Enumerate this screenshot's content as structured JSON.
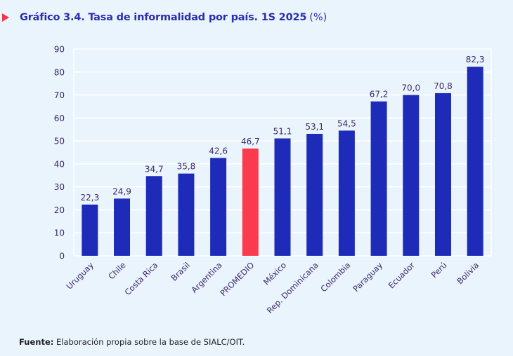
{
  "header": {
    "marker_icon": "triangle-right-icon",
    "title": "Gráfico 3.4. Tasa de informalidad por país. 1S 2025",
    "unit": "(%)"
  },
  "footer": {
    "source_label": "Fuente:",
    "source_text": "Elaboración propia sobre la base de SIALC/OIT."
  },
  "colors": {
    "bar": "#1e2bb8",
    "highlight": "#fb3a4d",
    "label": "#3b2a66",
    "grid": "#ffffff",
    "background": "#eaf4fd"
  },
  "chart_data": {
    "type": "bar",
    "title": "Gráfico 3.4. Tasa de informalidad por país. 1S 2025 (%)",
    "xlabel": "",
    "ylabel": "",
    "ylim": [
      0,
      90
    ],
    "yticks": [
      0,
      10,
      20,
      30,
      40,
      50,
      60,
      70,
      80,
      90
    ],
    "grid": true,
    "legend": "none",
    "categories": [
      "Uruguay",
      "Chile",
      "Costa Rica",
      "Brasil",
      "Argentina",
      "PROMEDIO",
      "México",
      "Rep. Dominicana",
      "Colombia",
      "Paraguay",
      "Ecuador",
      "Perú",
      "Bolivia"
    ],
    "values": [
      22.3,
      24.9,
      34.7,
      35.8,
      42.6,
      46.7,
      51.1,
      53.1,
      54.5,
      67.2,
      70.0,
      70.8,
      82.3
    ],
    "value_labels": [
      "22,3",
      "24,9",
      "34,7",
      "35,8",
      "42,6",
      "46,7",
      "51,1",
      "53,1",
      "54,5",
      "67,2",
      "70,0",
      "70,8",
      "82,3"
    ],
    "highlight_category": "PROMEDIO"
  }
}
